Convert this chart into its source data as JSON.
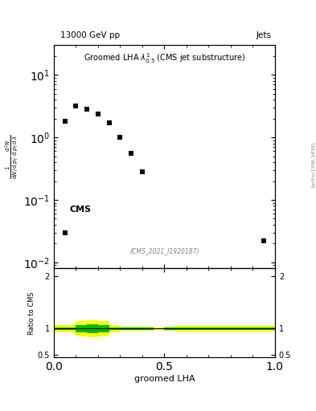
{
  "title_top": "13000 GeV pp",
  "title_right": "Jets",
  "plot_title": "Groomed LHA $\\lambda^{1}_{0.5}$ (CMS jet substructure)",
  "watermark": "(CMS_2021_I1920187)",
  "cms_label": "CMS",
  "data_x": [
    0.05,
    0.1,
    0.15,
    0.2,
    0.25,
    0.3,
    0.35,
    0.4,
    0.95
  ],
  "data_y": [
    1.8,
    3.2,
    2.8,
    2.4,
    1.7,
    1.0,
    0.55,
    0.28,
    0.022
  ],
  "outlier_x": [
    0.05
  ],
  "outlier_y": [
    0.03
  ],
  "xlabel": "groomed LHA",
  "ylabel_ratio": "Ratio to CMS",
  "ylim_main": [
    0.008,
    30
  ],
  "ylim_ratio": [
    0.45,
    2.15
  ],
  "xlim": [
    0.0,
    1.0
  ],
  "ratio_line_y": 1.0,
  "green_band_x": [
    0.0,
    0.05,
    0.1,
    0.15,
    0.2,
    0.25,
    0.3,
    0.35,
    0.4,
    0.45,
    0.5,
    0.55,
    0.6,
    0.65,
    0.7,
    0.75,
    0.8,
    0.85,
    0.9,
    0.95,
    1.0
  ],
  "green_band_lo": [
    0.97,
    0.97,
    0.93,
    0.91,
    0.93,
    0.97,
    0.98,
    0.98,
    0.98,
    0.99,
    0.98,
    0.98,
    0.98,
    0.98,
    0.98,
    0.98,
    0.98,
    0.98,
    0.98,
    0.98,
    0.98
  ],
  "green_band_hi": [
    1.03,
    1.03,
    1.07,
    1.09,
    1.07,
    1.03,
    1.02,
    1.02,
    1.02,
    1.01,
    1.02,
    1.02,
    1.02,
    1.02,
    1.02,
    1.02,
    1.02,
    1.02,
    1.02,
    1.02,
    1.02
  ],
  "yellow_band_lo": [
    0.93,
    0.93,
    0.86,
    0.84,
    0.86,
    0.93,
    0.96,
    0.96,
    0.96,
    0.97,
    0.96,
    0.95,
    0.95,
    0.95,
    0.95,
    0.95,
    0.95,
    0.95,
    0.95,
    0.95,
    0.95
  ],
  "yellow_band_hi": [
    1.07,
    1.07,
    1.14,
    1.16,
    1.14,
    1.07,
    1.04,
    1.04,
    1.04,
    1.03,
    1.04,
    1.05,
    1.05,
    1.05,
    1.05,
    1.05,
    1.05,
    1.05,
    1.05,
    1.05,
    1.05
  ],
  "marker_color": "black",
  "marker_size": 25,
  "green_color": "#00BB00",
  "yellow_color": "#FFFF00",
  "side_label": "[arXiv:1306.3438]",
  "background_color": "white",
  "ytick_labels_main": [
    "10$^{-2}$",
    "10$^{-1}$",
    "1",
    "10"
  ],
  "ytick_vals_main": [
    0.01,
    0.1,
    1.0,
    10.0
  ]
}
